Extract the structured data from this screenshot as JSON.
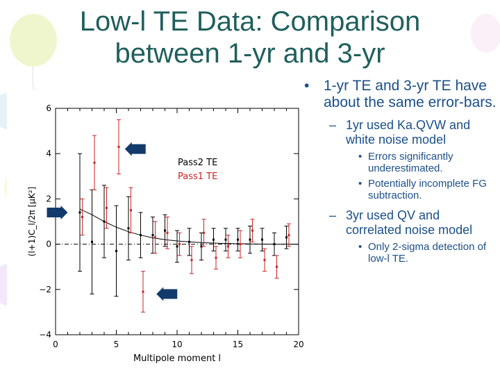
{
  "slide": {
    "title_line1": "Low-l TE Data: Comparison",
    "title_line2": "between 1-yr and 3-yr"
  },
  "bullets": {
    "b1": "1-yr TE and 3-yr TE have about the same error-bars.",
    "b1_1": "1yr used Ka.QVW and white noise model",
    "b1_1_1": "Errors significantly underestimated.",
    "b1_1_2": "Potentially incomplete FG subtraction.",
    "b1_2": "3yr used QV and correlated noise model",
    "b1_2_1": "Only 2-sigma detection of low-l TE."
  },
  "colors": {
    "title": "#1f5f5c",
    "text": "#1a4f87",
    "pass2": "#000000",
    "pass1": "#cc2222",
    "arrow": "#123a6b"
  },
  "chart_data": {
    "type": "scatter",
    "title": "",
    "xlabel": "Multipole moment l",
    "ylabel": "(l+1)C_l/2π [μK²]",
    "xlim": [
      0,
      20
    ],
    "ylim": [
      -4,
      6
    ],
    "xticks": [
      0,
      5,
      10,
      15,
      20
    ],
    "yticks": [
      -4,
      -2,
      0,
      2,
      4,
      6
    ],
    "legend": {
      "position": "top-right",
      "entries": [
        "Pass2 TE",
        "Pass1 TE"
      ]
    },
    "series": [
      {
        "name": "Pass2 TE",
        "color": "#000000",
        "points": [
          {
            "x": 2,
            "y": 1.4,
            "err": 2.6
          },
          {
            "x": 3,
            "y": 0.1,
            "err": 2.3
          },
          {
            "x": 4,
            "y": 1.0,
            "err": 1.6
          },
          {
            "x": 5,
            "y": -0.3,
            "err": 2.0
          },
          {
            "x": 6,
            "y": 0.7,
            "err": 1.4
          },
          {
            "x": 7,
            "y": 0.4,
            "err": 1.0
          },
          {
            "x": 8,
            "y": 0.4,
            "err": 0.8
          },
          {
            "x": 9,
            "y": 0.6,
            "err": 0.7
          },
          {
            "x": 10,
            "y": -0.1,
            "err": 0.7
          },
          {
            "x": 11,
            "y": 0.1,
            "err": 0.6
          },
          {
            "x": 12,
            "y": -0.1,
            "err": 0.6
          },
          {
            "x": 13,
            "y": 0.2,
            "err": 0.5
          },
          {
            "x": 14,
            "y": 0.2,
            "err": 0.5
          },
          {
            "x": 15,
            "y": 0.2,
            "err": 0.5
          },
          {
            "x": 16,
            "y": 0.2,
            "err": 0.6
          },
          {
            "x": 17,
            "y": 0.2,
            "err": 0.5
          },
          {
            "x": 18,
            "y": 0.0,
            "err": 0.5
          },
          {
            "x": 19,
            "y": 0.3,
            "err": 0.5
          }
        ]
      },
      {
        "name": "Pass1 TE",
        "color": "#cc2222",
        "points": [
          {
            "x": 2.2,
            "y": 1.2,
            "err": 0.8
          },
          {
            "x": 3.2,
            "y": 3.6,
            "err": 1.2
          },
          {
            "x": 4.2,
            "y": 1.6,
            "err": 0.9
          },
          {
            "x": 5.2,
            "y": 4.3,
            "err": 1.2
          },
          {
            "x": 6.2,
            "y": 1.5,
            "err": 1.0
          },
          {
            "x": 7.2,
            "y": -2.1,
            "err": 0.9
          },
          {
            "x": 8.2,
            "y": 0.3,
            "err": 0.7
          },
          {
            "x": 9.2,
            "y": 0.5,
            "err": 0.7
          },
          {
            "x": 10.2,
            "y": 0.0,
            "err": 0.5
          },
          {
            "x": 11.2,
            "y": -0.7,
            "err": 0.6
          },
          {
            "x": 12.2,
            "y": 0.5,
            "err": 0.6
          },
          {
            "x": 13.2,
            "y": -0.6,
            "err": 0.5
          },
          {
            "x": 14.2,
            "y": -0.1,
            "err": 0.5
          },
          {
            "x": 15.2,
            "y": 0.0,
            "err": 0.6
          },
          {
            "x": 16.2,
            "y": 0.6,
            "err": 0.5
          },
          {
            "x": 17.2,
            "y": -0.7,
            "err": 0.5
          },
          {
            "x": 18.2,
            "y": -1.0,
            "err": 0.5
          },
          {
            "x": 19.2,
            "y": 0.4,
            "err": 0.5
          }
        ]
      }
    ],
    "model_curve": [
      {
        "x": 2,
        "y": 1.55
      },
      {
        "x": 3,
        "y": 1.3
      },
      {
        "x": 4,
        "y": 1.0
      },
      {
        "x": 5,
        "y": 0.75
      },
      {
        "x": 6,
        "y": 0.55
      },
      {
        "x": 7,
        "y": 0.4
      },
      {
        "x": 8,
        "y": 0.28
      },
      {
        "x": 9,
        "y": 0.2
      },
      {
        "x": 10,
        "y": 0.14
      },
      {
        "x": 12,
        "y": 0.07
      },
      {
        "x": 14,
        "y": 0.03
      },
      {
        "x": 16,
        "y": 0.01
      },
      {
        "x": 18,
        "y": 0.0
      },
      {
        "x": 20,
        "y": 0.0
      }
    ],
    "arrows": [
      {
        "direction": "left",
        "x": 5.7,
        "y": 4.2
      },
      {
        "direction": "right",
        "x": 1.0,
        "y": 1.4
      },
      {
        "direction": "left",
        "x": 8.3,
        "y": -2.2
      }
    ]
  }
}
